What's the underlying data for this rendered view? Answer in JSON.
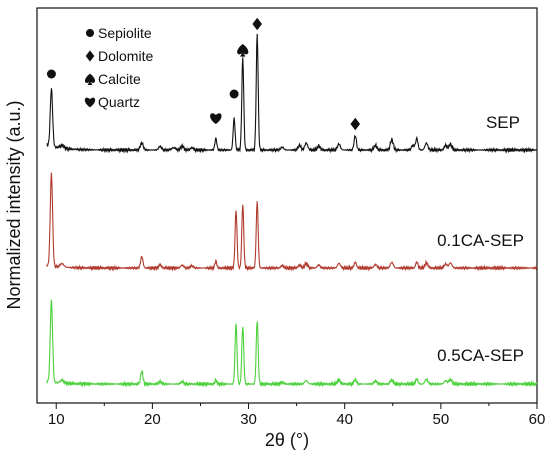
{
  "chart_data": {
    "type": "line",
    "xlabel": "2θ (°)",
    "ylabel": "Normalized intensity (a.u.)",
    "xlim": [
      8,
      60
    ],
    "xticks": [
      10,
      20,
      30,
      40,
      50,
      60
    ],
    "grid": false,
    "legend": {
      "placement": "top-left",
      "entries": [
        {
          "symbol": "circle",
          "label": "Sepiolite"
        },
        {
          "symbol": "diamond",
          "label": "Dolomite"
        },
        {
          "symbol": "spade",
          "label": "Calcite"
        },
        {
          "symbol": "heart",
          "label": "Quartz"
        }
      ]
    },
    "phase_markers": [
      {
        "symbol": "circle",
        "x": 9.5
      },
      {
        "symbol": "heart",
        "x": 26.6
      },
      {
        "symbol": "circle",
        "x": 28.5
      },
      {
        "symbol": "spade",
        "x": 29.4
      },
      {
        "symbol": "diamond",
        "x": 30.9
      },
      {
        "symbol": "diamond",
        "x": 41.1
      }
    ],
    "series": [
      {
        "name": "SEP",
        "color": "#111111",
        "baseline": 0.6,
        "peaks": [
          [
            9.5,
            1.0,
            0.12
          ],
          [
            10.6,
            0.05,
            0.2
          ],
          [
            18.9,
            0.12,
            0.15
          ],
          [
            20.8,
            0.06,
            0.15
          ],
          [
            22.2,
            0.04,
            0.2
          ],
          [
            23.1,
            0.07,
            0.15
          ],
          [
            24.1,
            0.04,
            0.15
          ],
          [
            26.6,
            0.2,
            0.1
          ],
          [
            28.5,
            0.55,
            0.1
          ],
          [
            29.4,
            1.6,
            0.1
          ],
          [
            30.9,
            2.0,
            0.1
          ],
          [
            33.5,
            0.05,
            0.15
          ],
          [
            35.3,
            0.08,
            0.15
          ],
          [
            36.0,
            0.12,
            0.15
          ],
          [
            37.3,
            0.07,
            0.15
          ],
          [
            39.4,
            0.1,
            0.15
          ],
          [
            41.1,
            0.25,
            0.12
          ],
          [
            43.2,
            0.08,
            0.15
          ],
          [
            44.9,
            0.18,
            0.15
          ],
          [
            47.1,
            0.08,
            0.15
          ],
          [
            47.5,
            0.2,
            0.12
          ],
          [
            48.5,
            0.12,
            0.15
          ],
          [
            50.5,
            0.08,
            0.15
          ],
          [
            51.0,
            0.1,
            0.15
          ]
        ]
      },
      {
        "name": "0.1CA-SEP",
        "color": "#b03a2e",
        "baseline": 0.3,
        "peaks": [
          [
            9.5,
            1.6,
            0.12
          ],
          [
            10.6,
            0.06,
            0.2
          ],
          [
            18.9,
            0.2,
            0.12
          ],
          [
            20.8,
            0.05,
            0.15
          ],
          [
            23.1,
            0.05,
            0.15
          ],
          [
            24.1,
            0.04,
            0.15
          ],
          [
            26.6,
            0.12,
            0.1
          ],
          [
            28.7,
            1.0,
            0.1
          ],
          [
            29.4,
            1.1,
            0.1
          ],
          [
            30.9,
            1.15,
            0.1
          ],
          [
            33.5,
            0.04,
            0.15
          ],
          [
            35.3,
            0.05,
            0.15
          ],
          [
            36.0,
            0.08,
            0.15
          ],
          [
            37.3,
            0.05,
            0.15
          ],
          [
            39.4,
            0.08,
            0.15
          ],
          [
            41.1,
            0.1,
            0.12
          ],
          [
            43.2,
            0.06,
            0.15
          ],
          [
            44.9,
            0.1,
            0.15
          ],
          [
            47.5,
            0.1,
            0.12
          ],
          [
            48.5,
            0.09,
            0.15
          ],
          [
            50.5,
            0.07,
            0.15
          ],
          [
            51.0,
            0.09,
            0.15
          ]
        ]
      },
      {
        "name": "0.5CA-SEP",
        "color": "#4cd13c",
        "baseline": 0.3,
        "peaks": [
          [
            9.5,
            1.4,
            0.12
          ],
          [
            10.6,
            0.05,
            0.2
          ],
          [
            18.9,
            0.22,
            0.12
          ],
          [
            20.8,
            0.04,
            0.15
          ],
          [
            23.1,
            0.04,
            0.15
          ],
          [
            26.6,
            0.07,
            0.1
          ],
          [
            28.7,
            1.05,
            0.1
          ],
          [
            29.4,
            1.0,
            0.1
          ],
          [
            30.9,
            1.1,
            0.1
          ],
          [
            33.5,
            0.03,
            0.15
          ],
          [
            36.0,
            0.06,
            0.15
          ],
          [
            39.4,
            0.07,
            0.15
          ],
          [
            41.1,
            0.08,
            0.12
          ],
          [
            43.2,
            0.05,
            0.15
          ],
          [
            44.9,
            0.07,
            0.15
          ],
          [
            47.5,
            0.09,
            0.12
          ],
          [
            48.5,
            0.08,
            0.15
          ],
          [
            50.5,
            0.06,
            0.15
          ],
          [
            51.0,
            0.08,
            0.15
          ]
        ]
      }
    ]
  }
}
